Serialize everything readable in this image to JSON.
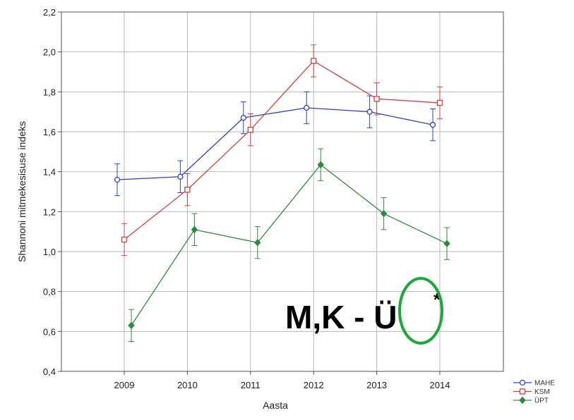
{
  "chart_data": {
    "type": "line",
    "xlabel": "Aasta",
    "ylabel": "Shannoni mitmekesisuse indeks",
    "categories": [
      "2009",
      "2010",
      "2011",
      "2012",
      "2013",
      "2014"
    ],
    "ylim": [
      0.4,
      2.2
    ],
    "yticks": [
      "0,4",
      "0,6",
      "0,8",
      "1,0",
      "1,2",
      "1,4",
      "1,6",
      "1,8",
      "2,0",
      "2,2"
    ],
    "grid": true,
    "legend_position": "bottom-right",
    "series": [
      {
        "name": "MAHE",
        "color": "#2f3fd0",
        "marker": "circle",
        "values": [
          1.36,
          1.375,
          1.67,
          1.72,
          1.7,
          1.635
        ],
        "error": [
          0.08,
          0.08,
          0.08,
          0.08,
          0.08,
          0.08
        ]
      },
      {
        "name": "KSM",
        "color": "#d04040",
        "marker": "square",
        "values": [
          1.06,
          1.31,
          1.61,
          1.955,
          1.765,
          1.745
        ],
        "error": [
          0.08,
          0.08,
          0.08,
          0.08,
          0.08,
          0.08
        ]
      },
      {
        "name": "ÜPT",
        "color": "#2e8b3e",
        "marker": "diamond",
        "values": [
          0.63,
          1.11,
          1.045,
          1.435,
          1.19,
          1.04
        ],
        "error": [
          0.08,
          0.08,
          0.08,
          0.08,
          0.08,
          0.08
        ]
      }
    ]
  },
  "annotation": {
    "text": "M,K - Ü",
    "superscript": "*",
    "ring_color": "#1aa83a"
  }
}
